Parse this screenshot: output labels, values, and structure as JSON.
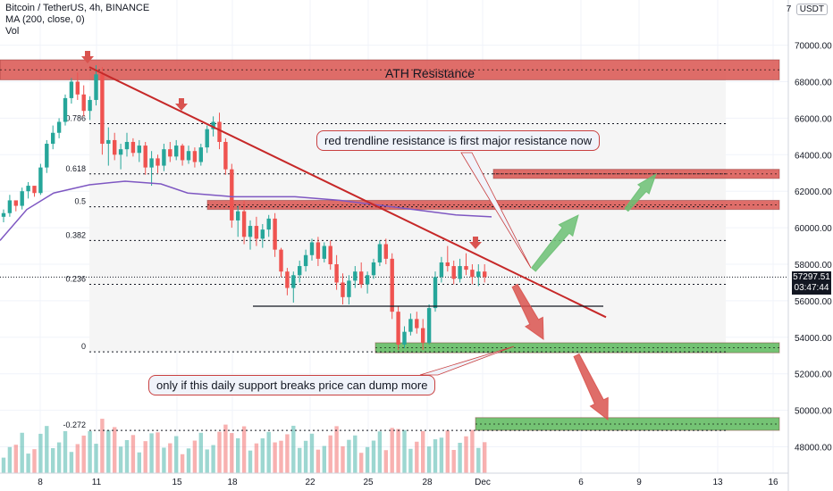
{
  "header": {
    "symbol_line": "Bitcoin / TetherUS, 4h, BINANCE",
    "ma_line": "MA (200, close, 0)",
    "vol_line": "Vol"
  },
  "currency_label": "USDT",
  "currency_prefix": "7",
  "current_price": "57297.51",
  "countdown": "03:47:44",
  "annotations": {
    "ath": "ATH Resistance",
    "trendline_note": "red trendline resistance is first major resistance now",
    "support_note": "only if this daily support breaks price can dump more"
  },
  "colors": {
    "up": "#26a69a",
    "down": "#ef5350",
    "resistance_zone": "#d9534f",
    "support_zone": "#5cb85c",
    "ma": "#7e57c2",
    "trendline": "#c62828"
  },
  "chart_data": {
    "type": "candlestick",
    "y_axis_ticks": [
      48000,
      50000,
      52000,
      54000,
      56000,
      58000,
      60000,
      62000,
      64000,
      66000,
      68000,
      70000
    ],
    "y_axis_labels": [
      "48000.00",
      "50000.00",
      "52000.00",
      "54000.00",
      "56000.00",
      "58000.00",
      "60000.00",
      "62000.00",
      "64000.00",
      "66000.00",
      "68000.00",
      "70000.00"
    ],
    "ylim": [
      47000,
      71500
    ],
    "x_axis_labels": [
      "8",
      "11",
      "15",
      "18",
      "22",
      "25",
      "28",
      "Dec",
      "6",
      "9",
      "13",
      "16"
    ],
    "fib_levels": [
      {
        "label": "0.786",
        "price": 65700
      },
      {
        "label": "0.618",
        "price": 62950
      },
      {
        "label": "0.5",
        "price": 61150
      },
      {
        "label": "0.382",
        "price": 59300
      },
      {
        "label": "0.236",
        "price": 56900
      },
      {
        "label": "0",
        "price": 53200
      },
      {
        "label": "-0.272",
        "price": 48900
      }
    ],
    "zones": [
      {
        "name": "ATH Resistance",
        "low": 68100,
        "high": 69200,
        "color": "resistance"
      },
      {
        "name": "resistance-1",
        "low": 62700,
        "high": 63200,
        "color": "resistance"
      },
      {
        "name": "resistance-2",
        "low": 61000,
        "high": 61500,
        "color": "resistance"
      },
      {
        "name": "support-1",
        "low": 53150,
        "high": 53700,
        "color": "support"
      },
      {
        "name": "support-2",
        "low": 48900,
        "high": 49600,
        "color": "support"
      }
    ],
    "candles": [
      [
        60600,
        61000,
        60300,
        60800
      ],
      [
        60800,
        61800,
        60600,
        61500
      ],
      [
        61500,
        61400,
        60900,
        61200
      ],
      [
        61200,
        62200,
        61000,
        62000
      ],
      [
        62000,
        62500,
        61600,
        62300
      ],
      [
        62300,
        62200,
        61700,
        61900
      ],
      [
        61900,
        63500,
        61800,
        63300
      ],
      [
        63300,
        64800,
        63000,
        64600
      ],
      [
        64600,
        65600,
        64300,
        65200
      ],
      [
        65200,
        66000,
        64900,
        65800
      ],
      [
        65800,
        67300,
        65600,
        67100
      ],
      [
        67100,
        68200,
        66800,
        68000
      ],
      [
        68000,
        68500,
        67000,
        67300
      ],
      [
        67300,
        67800,
        66100,
        66400
      ],
      [
        66400,
        67200,
        65900,
        67000
      ],
      [
        67000,
        68900,
        66700,
        68400
      ],
      [
        68400,
        68800,
        64000,
        64600
      ],
      [
        64600,
        65500,
        63400,
        64800
      ],
      [
        64800,
        65200,
        63700,
        64000
      ],
      [
        64000,
        64600,
        63200,
        64300
      ],
      [
        64300,
        65200,
        63900,
        64700
      ],
      [
        64700,
        64900,
        63900,
        64100
      ],
      [
        64100,
        64800,
        63600,
        64500
      ],
      [
        64500,
        64700,
        62900,
        63300
      ],
      [
        63300,
        64200,
        62300,
        63800
      ],
      [
        63800,
        64000,
        63000,
        63400
      ],
      [
        63400,
        64600,
        63100,
        64300
      ],
      [
        64300,
        64700,
        63600,
        63900
      ],
      [
        63900,
        64800,
        63700,
        64500
      ],
      [
        64500,
        64600,
        63400,
        63700
      ],
      [
        63700,
        64500,
        63500,
        64200
      ],
      [
        64200,
        64400,
        63300,
        63600
      ],
      [
        63600,
        64600,
        63400,
        64400
      ],
      [
        64400,
        65600,
        64100,
        65400
      ],
      [
        65400,
        66100,
        65000,
        65800
      ],
      [
        65800,
        66300,
        64300,
        64700
      ],
      [
        64700,
        64900,
        62900,
        63200
      ],
      [
        63200,
        63500,
        60000,
        60400
      ],
      [
        60400,
        61200,
        59500,
        60900
      ],
      [
        60900,
        61500,
        59100,
        59500
      ],
      [
        59500,
        60400,
        58800,
        60100
      ],
      [
        60100,
        60600,
        59000,
        59400
      ],
      [
        59400,
        60200,
        58900,
        59900
      ],
      [
        59900,
        60700,
        59500,
        60500
      ],
      [
        60500,
        60800,
        58400,
        58800
      ],
      [
        58800,
        58900,
        57300,
        57600
      ],
      [
        57600,
        57800,
        56300,
        56700
      ],
      [
        56700,
        57600,
        55900,
        57400
      ],
      [
        57400,
        58200,
        57000,
        57900
      ],
      [
        57900,
        58800,
        57600,
        58500
      ],
      [
        58500,
        59400,
        58200,
        59200
      ],
      [
        59200,
        59500,
        57900,
        58300
      ],
      [
        58300,
        59200,
        58100,
        59000
      ],
      [
        59000,
        59300,
        57700,
        58000
      ],
      [
        58000,
        58500,
        56600,
        57000
      ],
      [
        57000,
        57500,
        55800,
        56200
      ],
      [
        56200,
        57400,
        55800,
        57100
      ],
      [
        57100,
        57900,
        56700,
        57600
      ],
      [
        57600,
        58100,
        56700,
        56900
      ],
      [
        56900,
        57600,
        56400,
        57400
      ],
      [
        57400,
        58300,
        57200,
        58100
      ],
      [
        58100,
        59300,
        57900,
        59100
      ],
      [
        59100,
        59400,
        58000,
        58300
      ],
      [
        58300,
        58600,
        55000,
        55400
      ],
      [
        55400,
        55700,
        53300,
        53600
      ],
      [
        53600,
        54600,
        53400,
        54300
      ],
      [
        54300,
        55300,
        54100,
        55000
      ],
      [
        55000,
        55400,
        54200,
        54500
      ],
      [
        54500,
        55000,
        53300,
        53700
      ],
      [
        53700,
        55800,
        53600,
        55600
      ],
      [
        55600,
        57600,
        55400,
        57300
      ],
      [
        57300,
        58400,
        57000,
        58100
      ],
      [
        58100,
        59000,
        57600,
        57900
      ],
      [
        57900,
        58200,
        56900,
        57200
      ],
      [
        57200,
        58300,
        57000,
        57900
      ],
      [
        57900,
        58600,
        57400,
        57700
      ],
      [
        57700,
        58000,
        56900,
        57300
      ],
      [
        57300,
        58000,
        56800,
        57600
      ],
      [
        57600,
        58000,
        57000,
        57300
      ]
    ],
    "ma200": [
      [
        0,
        59300
      ],
      [
        30,
        61000
      ],
      [
        60,
        61900
      ],
      [
        100,
        62350
      ],
      [
        140,
        62550
      ],
      [
        180,
        62400
      ],
      [
        210,
        61900
      ],
      [
        260,
        61700
      ],
      [
        330,
        61700
      ],
      [
        380,
        61500
      ],
      [
        430,
        61200
      ],
      [
        470,
        60950
      ],
      [
        510,
        60700
      ],
      [
        550,
        60600
      ]
    ]
  }
}
